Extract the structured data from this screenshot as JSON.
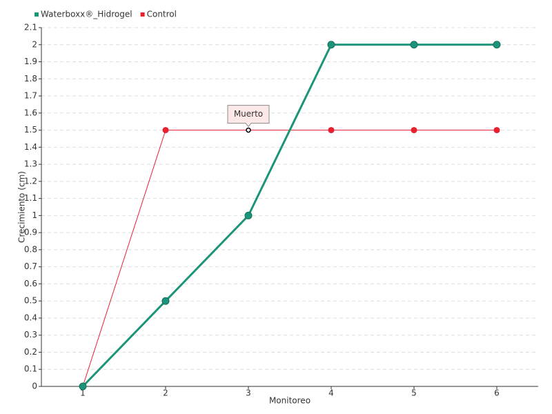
{
  "chart_data": {
    "type": "line",
    "x_label": "Monitoreo",
    "y_label": "Crecimiento (cm)",
    "x": [
      1,
      2,
      3,
      4,
      5,
      6
    ],
    "xlim": [
      0.5,
      6.5
    ],
    "xticks": [
      1,
      2,
      3,
      4,
      5,
      6
    ],
    "ylim": [
      0,
      2.1
    ],
    "yticks": [
      0,
      0.1,
      0.2,
      0.3,
      0.4,
      0.5,
      0.6,
      0.7,
      0.8,
      0.9,
      1,
      1.1,
      1.2,
      1.3,
      1.4,
      1.5,
      1.6,
      1.7,
      1.8,
      1.9,
      2,
      2.1
    ],
    "grid": true,
    "legend": "top-left",
    "series": [
      {
        "name": "Waterboxx®_Hidrogel",
        "color": "#1b9479",
        "values": [
          0,
          0.5,
          1,
          2,
          2,
          2
        ]
      },
      {
        "name": "Control",
        "color": "#e8212f",
        "values": [
          0,
          1.5,
          1.5,
          1.5,
          1.5,
          1.5
        ]
      }
    ],
    "annotations": [
      {
        "text": "Muerto",
        "x": 3,
        "y": 1.5
      }
    ]
  }
}
